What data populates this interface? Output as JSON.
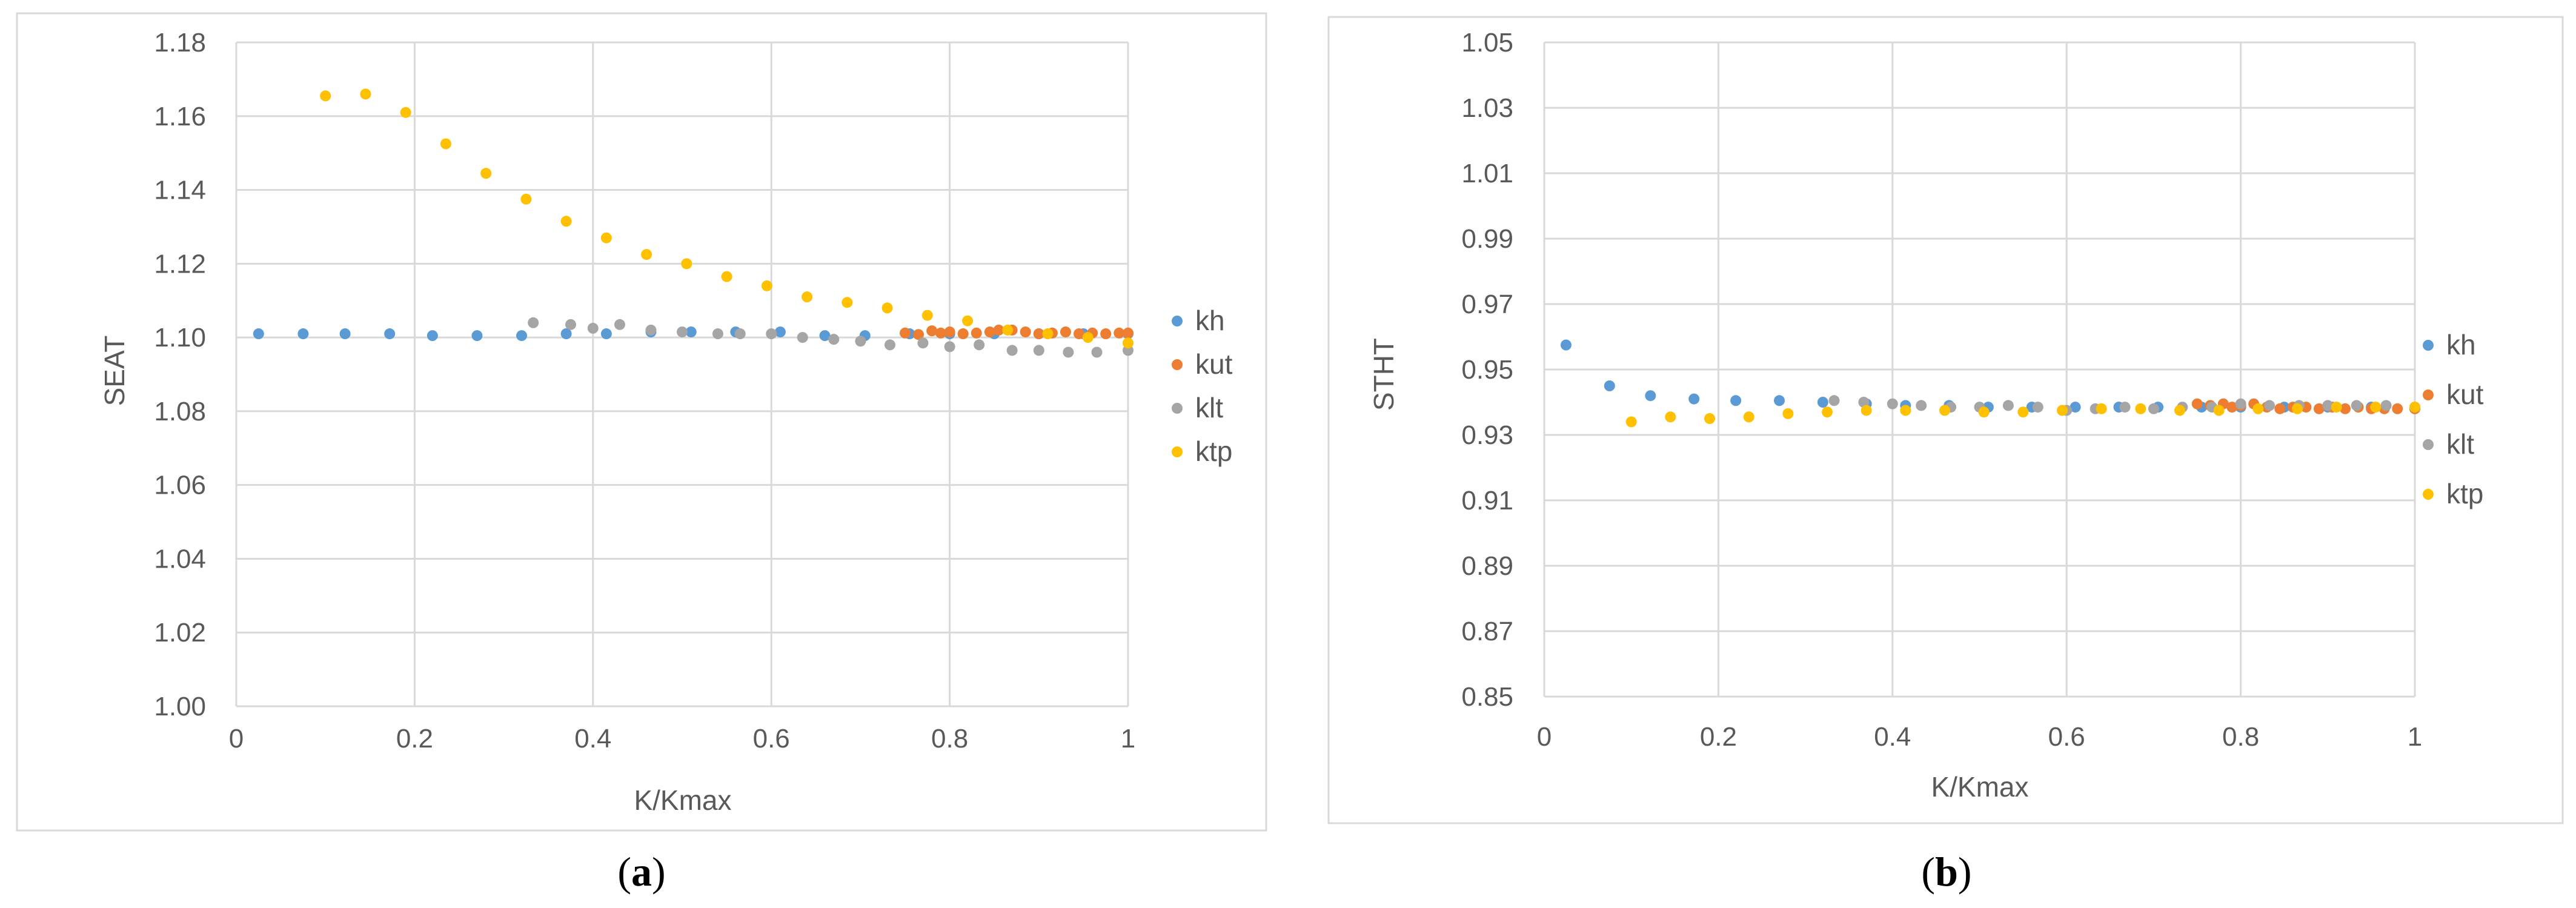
{
  "colors": {
    "kh": "#5b9bd5",
    "kut": "#ed7d31",
    "klt": "#a5a5a5",
    "ktp": "#ffc000",
    "grid": "#d9d9d9",
    "frame": "#d9d9d9",
    "text": "#595959"
  },
  "chart_data": [
    {
      "type": "scatter",
      "caption_letter": "a",
      "xlabel": "K/Kmax",
      "ylabel": "SEAT",
      "xlim": [
        0,
        1
      ],
      "ylim": [
        1.0,
        1.18
      ],
      "xticks": [
        0,
        0.2,
        0.4,
        0.6,
        0.8,
        1
      ],
      "xtick_labels": [
        "0",
        "0.2",
        "0.4",
        "0.6",
        "0.8",
        "1"
      ],
      "yticks": [
        1.0,
        1.02,
        1.04,
        1.06,
        1.08,
        1.1,
        1.12,
        1.14,
        1.16,
        1.18
      ],
      "ytick_labels": [
        "1.00",
        "1.02",
        "1.04",
        "1.06",
        "1.08",
        "1.10",
        "1.12",
        "1.14",
        "1.16",
        "1.18"
      ],
      "grid": true,
      "legend": "right",
      "series": [
        {
          "name": "kh",
          "points": [
            [
              0.025,
              1.101
            ],
            [
              0.075,
              1.101
            ],
            [
              0.122,
              1.101
            ],
            [
              0.172,
              1.101
            ],
            [
              0.22,
              1.1005
            ],
            [
              0.27,
              1.1005
            ],
            [
              0.32,
              1.1005
            ],
            [
              0.37,
              1.101
            ],
            [
              0.415,
              1.101
            ],
            [
              0.465,
              1.1015
            ],
            [
              0.51,
              1.1015
            ],
            [
              0.56,
              1.1015
            ],
            [
              0.61,
              1.1015
            ],
            [
              0.66,
              1.1005
            ],
            [
              0.705,
              1.1005
            ],
            [
              0.755,
              1.101
            ],
            [
              0.8,
              1.101
            ],
            [
              0.85,
              1.101
            ],
            [
              0.9,
              1.101
            ],
            [
              0.95,
              1.101
            ],
            [
              1.0,
              1.101
            ]
          ]
        },
        {
          "name": "kut",
          "points": [
            [
              0.75,
              1.1012
            ],
            [
              0.765,
              1.1008
            ],
            [
              0.78,
              1.1018
            ],
            [
              0.79,
              1.1012
            ],
            [
              0.8,
              1.1015
            ],
            [
              0.815,
              1.101
            ],
            [
              0.83,
              1.1012
            ],
            [
              0.845,
              1.1015
            ],
            [
              0.855,
              1.102
            ],
            [
              0.87,
              1.102
            ],
            [
              0.885,
              1.1015
            ],
            [
              0.9,
              1.101
            ],
            [
              0.915,
              1.1012
            ],
            [
              0.93,
              1.1015
            ],
            [
              0.945,
              1.101
            ],
            [
              0.96,
              1.1012
            ],
            [
              0.975,
              1.101
            ],
            [
              0.99,
              1.1012
            ],
            [
              1.0,
              1.1012
            ]
          ]
        },
        {
          "name": "klt",
          "points": [
            [
              0.333,
              1.104
            ],
            [
              0.375,
              1.1035
            ],
            [
              0.4,
              1.1025
            ],
            [
              0.43,
              1.1035
            ],
            [
              0.465,
              1.102
            ],
            [
              0.5,
              1.1015
            ],
            [
              0.54,
              1.101
            ],
            [
              0.565,
              1.101
            ],
            [
              0.6,
              1.101
            ],
            [
              0.635,
              1.1
            ],
            [
              0.67,
              1.0995
            ],
            [
              0.7,
              1.099
            ],
            [
              0.733,
              1.098
            ],
            [
              0.77,
              1.0985
            ],
            [
              0.8,
              1.0975
            ],
            [
              0.833,
              1.098
            ],
            [
              0.87,
              1.0965
            ],
            [
              0.9,
              1.0965
            ],
            [
              0.933,
              1.096
            ],
            [
              0.965,
              1.096
            ],
            [
              1.0,
              1.0965
            ]
          ]
        },
        {
          "name": "ktp",
          "points": [
            [
              0.1,
              1.1655
            ],
            [
              0.145,
              1.166
            ],
            [
              0.19,
              1.161
            ],
            [
              0.235,
              1.1525
            ],
            [
              0.28,
              1.1445
            ],
            [
              0.325,
              1.1375
            ],
            [
              0.37,
              1.1315
            ],
            [
              0.415,
              1.127
            ],
            [
              0.46,
              1.1225
            ],
            [
              0.505,
              1.12
            ],
            [
              0.55,
              1.1165
            ],
            [
              0.595,
              1.114
            ],
            [
              0.64,
              1.111
            ],
            [
              0.685,
              1.1095
            ],
            [
              0.73,
              1.108
            ],
            [
              0.775,
              1.106
            ],
            [
              0.82,
              1.1045
            ],
            [
              0.865,
              1.102
            ],
            [
              0.91,
              1.101
            ],
            [
              0.955,
              1.1
            ],
            [
              1.0,
              1.0985
            ]
          ]
        }
      ]
    },
    {
      "type": "scatter",
      "caption_letter": "b",
      "xlabel": "K/Kmax",
      "ylabel": "STHT",
      "xlim": [
        0,
        1
      ],
      "ylim": [
        0.85,
        1.05
      ],
      "xticks": [
        0,
        0.2,
        0.4,
        0.6,
        0.8,
        1
      ],
      "xtick_labels": [
        "0",
        "0.2",
        "0.4",
        "0.6",
        "0.8",
        "1"
      ],
      "yticks": [
        0.85,
        0.87,
        0.89,
        0.91,
        0.93,
        0.95,
        0.97,
        0.99,
        1.01,
        1.03,
        1.05
      ],
      "ytick_labels": [
        "0.85",
        "0.87",
        "0.89",
        "0.91",
        "0.93",
        "0.95",
        "0.97",
        "0.99",
        "1.01",
        "1.03",
        "1.05"
      ],
      "grid": true,
      "legend": "right",
      "series": [
        {
          "name": "kh",
          "points": [
            [
              0.025,
              0.9575
            ],
            [
              0.075,
              0.945
            ],
            [
              0.122,
              0.942
            ],
            [
              0.172,
              0.941
            ],
            [
              0.22,
              0.9405
            ],
            [
              0.27,
              0.9405
            ],
            [
              0.32,
              0.94
            ],
            [
              0.37,
              0.9395
            ],
            [
              0.415,
              0.939
            ],
            [
              0.465,
              0.939
            ],
            [
              0.51,
              0.9385
            ],
            [
              0.56,
              0.9385
            ],
            [
              0.61,
              0.9385
            ],
            [
              0.66,
              0.9385
            ],
            [
              0.705,
              0.9385
            ],
            [
              0.755,
              0.9385
            ],
            [
              0.8,
              0.9385
            ],
            [
              0.85,
              0.9385
            ],
            [
              0.9,
              0.9385
            ],
            [
              0.95,
              0.9385
            ],
            [
              1.0,
              0.938
            ]
          ]
        },
        {
          "name": "kut",
          "points": [
            [
              0.75,
              0.9395
            ],
            [
              0.765,
              0.939
            ],
            [
              0.78,
              0.9395
            ],
            [
              0.79,
              0.9385
            ],
            [
              0.8,
              0.939
            ],
            [
              0.815,
              0.9395
            ],
            [
              0.83,
              0.9385
            ],
            [
              0.845,
              0.938
            ],
            [
              0.86,
              0.9385
            ],
            [
              0.875,
              0.9385
            ],
            [
              0.89,
              0.938
            ],
            [
              0.905,
              0.9385
            ],
            [
              0.92,
              0.938
            ],
            [
              0.935,
              0.9385
            ],
            [
              0.95,
              0.938
            ],
            [
              0.965,
              0.938
            ],
            [
              0.98,
              0.938
            ],
            [
              1.0,
              0.938
            ]
          ]
        },
        {
          "name": "klt",
          "points": [
            [
              0.333,
              0.9405
            ],
            [
              0.367,
              0.94
            ],
            [
              0.4,
              0.9395
            ],
            [
              0.433,
              0.939
            ],
            [
              0.467,
              0.9385
            ],
            [
              0.5,
              0.9385
            ],
            [
              0.533,
              0.939
            ],
            [
              0.567,
              0.9385
            ],
            [
              0.6,
              0.9375
            ],
            [
              0.633,
              0.938
            ],
            [
              0.667,
              0.9385
            ],
            [
              0.7,
              0.938
            ],
            [
              0.733,
              0.9385
            ],
            [
              0.767,
              0.9385
            ],
            [
              0.8,
              0.9395
            ],
            [
              0.833,
              0.939
            ],
            [
              0.867,
              0.939
            ],
            [
              0.9,
              0.939
            ],
            [
              0.933,
              0.939
            ],
            [
              0.967,
              0.939
            ],
            [
              1.0,
              0.9385
            ]
          ]
        },
        {
          "name": "ktp",
          "points": [
            [
              0.1,
              0.934
            ],
            [
              0.145,
              0.9355
            ],
            [
              0.19,
              0.935
            ],
            [
              0.235,
              0.9355
            ],
            [
              0.28,
              0.9365
            ],
            [
              0.325,
              0.937
            ],
            [
              0.37,
              0.9375
            ],
            [
              0.415,
              0.9375
            ],
            [
              0.46,
              0.9375
            ],
            [
              0.505,
              0.937
            ],
            [
              0.55,
              0.937
            ],
            [
              0.595,
              0.9375
            ],
            [
              0.64,
              0.938
            ],
            [
              0.685,
              0.938
            ],
            [
              0.73,
              0.9375
            ],
            [
              0.775,
              0.9375
            ],
            [
              0.82,
              0.938
            ],
            [
              0.865,
              0.938
            ],
            [
              0.91,
              0.9385
            ],
            [
              0.955,
              0.9385
            ],
            [
              1.0,
              0.9385
            ]
          ]
        }
      ]
    }
  ]
}
